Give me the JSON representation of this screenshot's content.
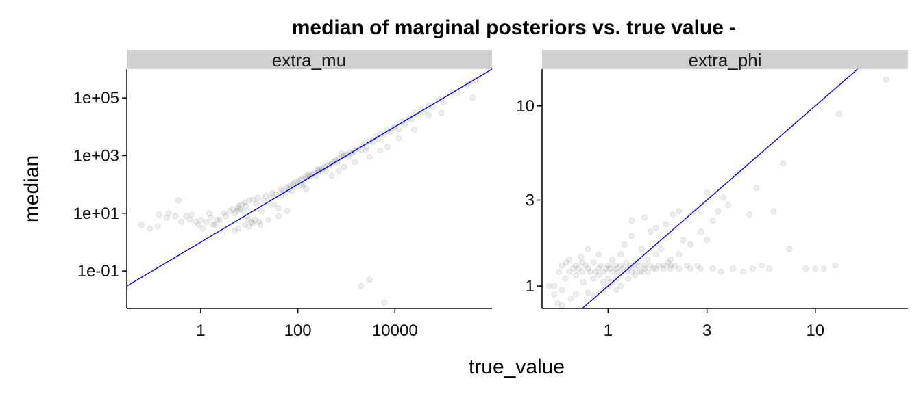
{
  "chart_data": {
    "type": "scatter",
    "title": "median of marginal posteriors vs. true value -",
    "xlabel": "true_value",
    "ylabel": "median",
    "log_x": true,
    "log_y": true,
    "reference_line": "y = x",
    "panels": [
      {
        "name": "extra_mu",
        "xlim": [
          0.03,
          1000000
        ],
        "ylim": [
          0.005,
          1000000
        ],
        "x_ticks": [
          {
            "value": 1,
            "label": "1"
          },
          {
            "value": 100,
            "label": "100"
          },
          {
            "value": 10000,
            "label": "10000"
          }
        ],
        "y_ticks": [
          {
            "value": 0.1,
            "label": "1e-01"
          },
          {
            "value": 10,
            "label": "1e+01"
          },
          {
            "value": 1000,
            "label": "1e+03"
          },
          {
            "value": 100000,
            "label": "1e+05"
          }
        ],
        "points": [
          [
            0.06,
            4
          ],
          [
            0.09,
            3
          ],
          [
            0.13,
            3.5
          ],
          [
            0.14,
            9
          ],
          [
            0.2,
            7
          ],
          [
            0.22,
            10
          ],
          [
            0.3,
            8
          ],
          [
            0.35,
            28
          ],
          [
            0.4,
            5
          ],
          [
            0.5,
            8
          ],
          [
            0.6,
            6
          ],
          [
            0.65,
            9
          ],
          [
            0.8,
            5
          ],
          [
            0.9,
            4
          ],
          [
            1.0,
            6
          ],
          [
            1.1,
            3
          ],
          [
            1.3,
            5
          ],
          [
            1.5,
            10
          ],
          [
            1.6,
            7
          ],
          [
            1.8,
            4
          ],
          [
            2.0,
            4
          ],
          [
            2.2,
            6
          ],
          [
            2.5,
            6
          ],
          [
            3.0,
            10
          ],
          [
            3.3,
            8
          ],
          [
            4.0,
            12
          ],
          [
            4.5,
            14
          ],
          [
            5.0,
            10
          ],
          [
            5.5,
            12
          ],
          [
            5.8,
            15
          ],
          [
            6.0,
            18
          ],
          [
            6.5,
            14
          ],
          [
            7.0,
            20
          ],
          [
            7.5,
            12
          ],
          [
            8.0,
            24
          ],
          [
            8.5,
            18
          ],
          [
            9.0,
            8
          ],
          [
            9.5,
            6
          ],
          [
            10,
            28
          ],
          [
            11,
            5
          ],
          [
            12,
            30
          ],
          [
            13,
            6
          ],
          [
            14,
            22
          ],
          [
            15,
            35
          ],
          [
            16,
            5
          ],
          [
            17,
            4
          ],
          [
            18,
            12
          ],
          [
            20,
            28
          ],
          [
            22,
            40
          ],
          [
            25,
            6
          ],
          [
            28,
            35
          ],
          [
            30,
            50
          ],
          [
            32,
            20
          ],
          [
            35,
            45
          ],
          [
            40,
            15
          ],
          [
            45,
            40
          ],
          [
            50,
            60
          ],
          [
            55,
            50
          ],
          [
            60,
            80
          ],
          [
            65,
            70
          ],
          [
            70,
            90
          ],
          [
            75,
            60
          ],
          [
            80,
            100
          ],
          [
            85,
            120
          ],
          [
            90,
            80
          ],
          [
            100,
            120
          ],
          [
            110,
            140
          ],
          [
            120,
            150
          ],
          [
            130,
            100
          ],
          [
            140,
            180
          ],
          [
            150,
            160
          ],
          [
            160,
            200
          ],
          [
            170,
            230
          ],
          [
            180,
            190
          ],
          [
            200,
            220
          ],
          [
            220,
            260
          ],
          [
            240,
            200
          ],
          [
            260,
            300
          ],
          [
            280,
            320
          ],
          [
            300,
            280
          ],
          [
            320,
            350
          ],
          [
            350,
            400
          ],
          [
            380,
            300
          ],
          [
            400,
            450
          ],
          [
            450,
            480
          ],
          [
            500,
            520
          ],
          [
            550,
            600
          ],
          [
            600,
            700
          ],
          [
            650,
            580
          ],
          [
            700,
            800
          ],
          [
            800,
            900
          ],
          [
            900,
            1000
          ],
          [
            1000,
            1100
          ],
          [
            1100,
            900
          ],
          [
            1200,
            1300
          ],
          [
            1300,
            1200
          ],
          [
            1500,
            1400
          ],
          [
            1700,
            1800
          ],
          [
            2000,
            1600
          ],
          [
            2300,
            2400
          ],
          [
            2600,
            2000
          ],
          [
            3000,
            3200
          ],
          [
            3500,
            3000
          ],
          [
            4000,
            4500
          ],
          [
            4500,
            3800
          ],
          [
            5000,
            5500
          ],
          [
            6000,
            5200
          ],
          [
            7000,
            7500
          ],
          [
            8000,
            6500
          ],
          [
            9000,
            9000
          ],
          [
            10000,
            10000
          ],
          [
            12000,
            8000
          ],
          [
            14000,
            15000
          ],
          [
            16000,
            12000
          ],
          [
            19000,
            20000
          ],
          [
            22000,
            18000
          ],
          [
            26000,
            30000
          ],
          [
            30000,
            25000
          ],
          [
            35000,
            40000
          ],
          [
            40000,
            32000
          ],
          [
            50000,
            55000
          ],
          [
            60000,
            48000
          ],
          [
            80000,
            90000
          ],
          [
            100000,
            70000
          ],
          [
            150000,
            160000
          ],
          [
            200000,
            150000
          ],
          [
            300000,
            280000
          ],
          [
            350000,
            320000
          ],
          [
            450000,
            400000
          ],
          [
            5,
            2.5
          ],
          [
            6,
            3
          ],
          [
            8,
            4
          ],
          [
            10,
            3.5
          ],
          [
            12,
            4.5
          ],
          [
            2000,
            0.03
          ],
          [
            3000,
            0.05
          ],
          [
            5000,
            0.003
          ],
          [
            6000,
            0.008
          ],
          [
            40,
            8
          ],
          [
            60,
            12
          ],
          [
            150,
            70
          ],
          [
            500,
            200
          ],
          [
            700,
            300
          ],
          [
            900,
            400
          ],
          [
            1500,
            600
          ],
          [
            3000,
            900
          ],
          [
            7000,
            2000
          ],
          [
            12000,
            4000
          ],
          [
            25000,
            8000
          ],
          [
            50000,
            25000
          ],
          [
            90000,
            30000
          ],
          [
            400000,
            100000
          ],
          [
            5000,
            1500
          ],
          [
            2500,
            1500
          ],
          [
            800,
            1200
          ],
          [
            250,
            350
          ],
          [
            120,
            90
          ],
          [
            45,
            70
          ]
        ]
      },
      {
        "name": "extra_phi",
        "xlim": [
          0.48,
          28
        ],
        "ylim": [
          0.75,
          16
        ],
        "x_ticks": [
          {
            "value": 1,
            "label": "1"
          },
          {
            "value": 3,
            "label": "3"
          },
          {
            "value": 10,
            "label": "10"
          }
        ],
        "y_ticks": [
          {
            "value": 1,
            "label": "1"
          },
          {
            "value": 3,
            "label": "3"
          },
          {
            "value": 10,
            "label": "10"
          }
        ],
        "points": [
          [
            0.55,
            0.9
          ],
          [
            0.55,
            1.0
          ],
          [
            0.58,
            1.2
          ],
          [
            0.6,
            1.3
          ],
          [
            0.6,
            0.95
          ],
          [
            0.62,
            1.1
          ],
          [
            0.63,
            1.35
          ],
          [
            0.65,
            1.2
          ],
          [
            0.66,
            0.85
          ],
          [
            0.68,
            1.25
          ],
          [
            0.7,
            1.3
          ],
          [
            0.7,
            1.15
          ],
          [
            0.72,
            1.25
          ],
          [
            0.74,
            1.45
          ],
          [
            0.75,
            1.2
          ],
          [
            0.76,
            1.05
          ],
          [
            0.78,
            1.3
          ],
          [
            0.8,
            1.25
          ],
          [
            0.8,
            1.6
          ],
          [
            0.82,
            1.2
          ],
          [
            0.85,
            1.35
          ],
          [
            0.85,
            1.1
          ],
          [
            0.87,
            1.2
          ],
          [
            0.9,
            1.25
          ],
          [
            0.9,
            1.5
          ],
          [
            0.92,
            1.3
          ],
          [
            0.95,
            1.2
          ],
          [
            0.95,
            1.05
          ],
          [
            0.98,
            1.25
          ],
          [
            1.0,
            1.3
          ],
          [
            1.0,
            1.1
          ],
          [
            1.02,
            1.25
          ],
          [
            1.05,
            1.2
          ],
          [
            1.05,
            1.4
          ],
          [
            1.08,
            1.3
          ],
          [
            1.1,
            1.25
          ],
          [
            1.1,
            0.95
          ],
          [
            1.12,
            1.2
          ],
          [
            1.15,
            1.3
          ],
          [
            1.15,
            1.5
          ],
          [
            1.18,
            1.25
          ],
          [
            1.2,
            1.2
          ],
          [
            1.2,
            1.7
          ],
          [
            1.22,
            1.35
          ],
          [
            1.25,
            1.25
          ],
          [
            1.28,
            1.3
          ],
          [
            1.3,
            1.2
          ],
          [
            1.3,
            1.9
          ],
          [
            1.35,
            1.25
          ],
          [
            1.38,
            1.35
          ],
          [
            1.4,
            1.3
          ],
          [
            1.42,
            1.2
          ],
          [
            1.45,
            1.6
          ],
          [
            1.5,
            1.3
          ],
          [
            1.5,
            1.25
          ],
          [
            1.55,
            1.4
          ],
          [
            1.6,
            1.3
          ],
          [
            1.6,
            2.0
          ],
          [
            1.65,
            1.25
          ],
          [
            1.7,
            1.5
          ],
          [
            1.75,
            1.3
          ],
          [
            1.8,
            1.6
          ],
          [
            1.85,
            1.25
          ],
          [
            1.9,
            2.2
          ],
          [
            1.95,
            1.35
          ],
          [
            2.0,
            1.3
          ],
          [
            2.0,
            1.25
          ],
          [
            2.05,
            2.5
          ],
          [
            2.1,
            1.3
          ],
          [
            2.2,
            1.25
          ],
          [
            2.3,
            1.8
          ],
          [
            2.4,
            1.3
          ],
          [
            2.5,
            1.25
          ],
          [
            2.6,
            2.6
          ],
          [
            2.7,
            1.3
          ],
          [
            2.8,
            1.25
          ],
          [
            3.0,
            1.8
          ],
          [
            3.0,
            3.3
          ],
          [
            3.2,
            1.25
          ],
          [
            3.4,
            2.6
          ],
          [
            3.5,
            1.2
          ],
          [
            3.6,
            3.1
          ],
          [
            4.0,
            1.25
          ],
          [
            4.2,
            4.2
          ],
          [
            4.5,
            1.2
          ],
          [
            4.8,
            2.5
          ],
          [
            5.0,
            1.25
          ],
          [
            5.2,
            3.5
          ],
          [
            5.5,
            1.3
          ],
          [
            6.0,
            1.25
          ],
          [
            6.3,
            2.6
          ],
          [
            7.0,
            4.8
          ],
          [
            7.5,
            1.6
          ],
          [
            9.0,
            1.25
          ],
          [
            10.0,
            1.25
          ],
          [
            11.0,
            1.25
          ],
          [
            12.5,
            1.3
          ],
          [
            13.0,
            9.0
          ],
          [
            22.0,
            14.0
          ],
          [
            0.52,
            1.0
          ],
          [
            0.57,
            0.8
          ],
          [
            0.6,
            0.78
          ],
          [
            0.65,
            1.4
          ],
          [
            0.7,
            0.9
          ],
          [
            0.75,
            1.35
          ],
          [
            0.8,
            0.92
          ],
          [
            0.85,
            0.88
          ],
          [
            0.9,
            1.15
          ],
          [
            0.95,
            0.95
          ],
          [
            1.0,
            1.0
          ],
          [
            1.05,
            1.05
          ],
          [
            1.1,
            1.1
          ],
          [
            1.15,
            1.0
          ],
          [
            1.25,
            1.1
          ],
          [
            1.35,
            1.15
          ],
          [
            1.45,
            1.2
          ],
          [
            1.55,
            1.2
          ],
          [
            1.7,
            1.25
          ],
          [
            1.85,
            1.3
          ],
          [
            2.0,
            1.4
          ],
          [
            2.2,
            1.5
          ],
          [
            2.5,
            1.7
          ],
          [
            2.8,
            2.0
          ],
          [
            3.2,
            2.3
          ],
          [
            3.8,
            2.8
          ],
          [
            1.3,
            2.3
          ],
          [
            1.5,
            2.4
          ],
          [
            1.7,
            2.1
          ],
          [
            2.2,
            2.6
          ]
        ]
      }
    ]
  }
}
